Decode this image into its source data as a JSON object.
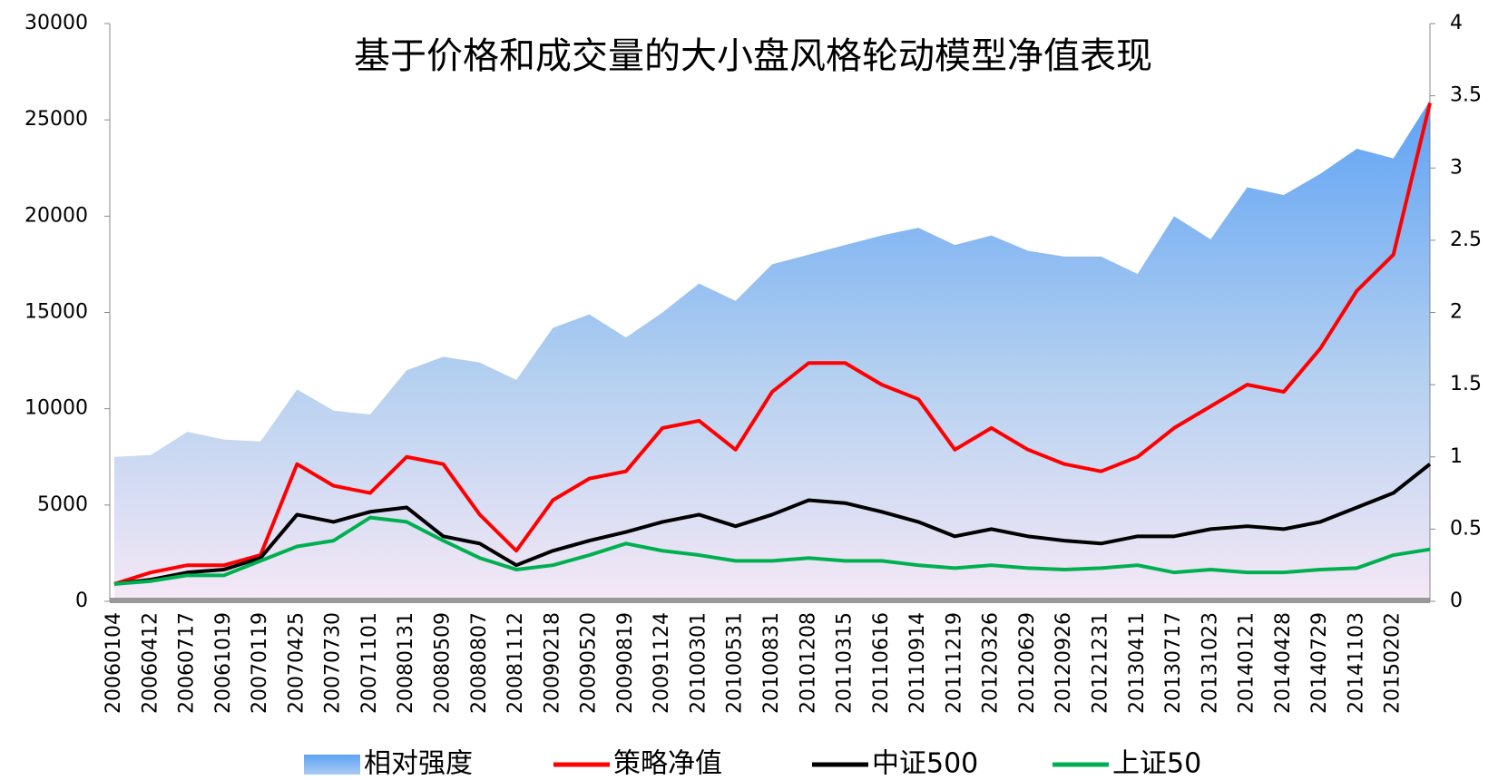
{
  "chart_data": {
    "type": "area-line",
    "title": "基于价格和成交量的大小盘风格轮动模型净值表现",
    "categories": [
      "20060104",
      "20060412",
      "20060717",
      "20061019",
      "20070119",
      "20070425",
      "20070730",
      "20071101",
      "20080131",
      "20080509",
      "20080807",
      "20081112",
      "20090218",
      "20090520",
      "20090819",
      "20091124",
      "20100301",
      "20100531",
      "20100831",
      "20101208",
      "20110315",
      "20110616",
      "20110914",
      "20111219",
      "20120326",
      "20120629",
      "20120926",
      "20121231",
      "20130411",
      "20130717",
      "20131023",
      "20140121",
      "20140428",
      "20140729",
      "20141103",
      "20150202",
      null
    ],
    "series": [
      {
        "name": "相对强度",
        "kind": "area",
        "color": "#6aaaf5",
        "axis": "y",
        "values": [
          7500,
          7600,
          8800,
          8400,
          8300,
          11000,
          9900,
          9700,
          12000,
          12700,
          12400,
          11500,
          14200,
          14900,
          13700,
          15000,
          16500,
          15600,
          17500,
          18000,
          18500,
          19000,
          19400,
          18500,
          19000,
          18200,
          17900,
          17900,
          17000,
          20000,
          18800,
          21500,
          21100,
          22200,
          23500,
          23000,
          26000
        ]
      },
      {
        "name": "策略净值",
        "kind": "line",
        "color": "#ff0000",
        "axis": "y2",
        "values": [
          0.12,
          0.2,
          0.25,
          0.25,
          0.32,
          0.95,
          0.8,
          0.75,
          1.0,
          0.95,
          0.6,
          0.35,
          0.7,
          0.85,
          0.9,
          1.2,
          1.25,
          1.05,
          1.45,
          1.65,
          1.65,
          1.5,
          1.4,
          1.05,
          1.2,
          1.05,
          0.95,
          0.9,
          1.0,
          1.2,
          1.35,
          1.5,
          1.45,
          1.75,
          2.15,
          2.4,
          3.45
        ]
      },
      {
        "name": "中证500",
        "kind": "line",
        "color": "#000000",
        "axis": "y2",
        "values": [
          0.12,
          0.15,
          0.2,
          0.22,
          0.3,
          0.6,
          0.55,
          0.62,
          0.65,
          0.45,
          0.4,
          0.25,
          0.35,
          0.42,
          0.48,
          0.55,
          0.6,
          0.52,
          0.6,
          0.7,
          0.68,
          0.62,
          0.55,
          0.45,
          0.5,
          0.45,
          0.42,
          0.4,
          0.45,
          0.45,
          0.5,
          0.52,
          0.5,
          0.55,
          0.65,
          0.75,
          0.95
        ]
      },
      {
        "name": "上证50",
        "kind": "line",
        "color": "#00b050",
        "axis": "y2",
        "values": [
          0.12,
          0.14,
          0.18,
          0.18,
          0.28,
          0.38,
          0.42,
          0.58,
          0.55,
          0.42,
          0.3,
          0.22,
          0.25,
          0.32,
          0.4,
          0.35,
          0.32,
          0.28,
          0.28,
          0.3,
          0.28,
          0.28,
          0.25,
          0.23,
          0.25,
          0.23,
          0.22,
          0.23,
          0.25,
          0.2,
          0.22,
          0.2,
          0.2,
          0.22,
          0.23,
          0.32,
          0.36
        ]
      }
    ],
    "ylim": [
      0,
      30000
    ],
    "yticks": [
      0,
      5000,
      10000,
      15000,
      20000,
      25000,
      30000
    ],
    "y2lim": [
      0,
      4
    ],
    "y2ticks": [
      0,
      0.5,
      1,
      1.5,
      2,
      2.5,
      3,
      3.5,
      4
    ]
  }
}
